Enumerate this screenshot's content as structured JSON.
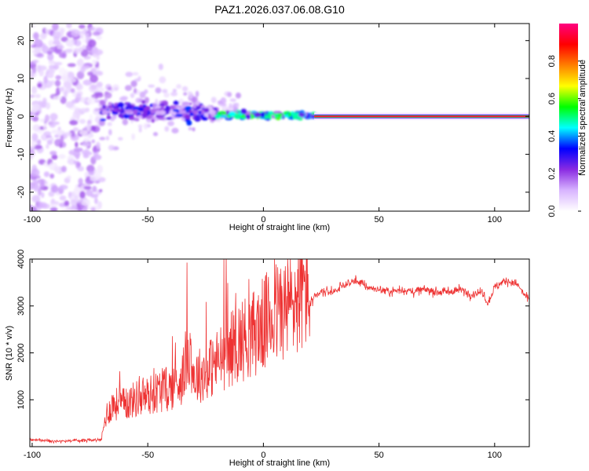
{
  "chart_data": [
    {
      "type": "heatmap",
      "title": "PAZ1.2026.037.06.08.G10",
      "xlabel": "Height of straight line (km)",
      "ylabel": "Frequency (Hz)",
      "xlim": [
        -101,
        115
      ],
      "ylim": [
        -25,
        24.5
      ],
      "xticks": [
        -100,
        -50,
        0,
        50,
        100
      ],
      "yticks": [
        -20,
        -10,
        0,
        10,
        20
      ],
      "colorbar": {
        "label": "Normalized spectral amplitude",
        "range": [
          0,
          1
        ],
        "ticks": [
          0.0,
          0.2,
          0.4,
          0.6,
          0.8
        ],
        "colors": [
          "#ffffff",
          "#d8b4ff",
          "#8a2be2",
          "#0000ff",
          "#00ffff",
          "#00ff00",
          "#ffff00",
          "#ff7f00",
          "#ff0000",
          "#ff0080"
        ]
      },
      "regions": [
        {
          "x_range": [
            -101,
            -70
          ],
          "frequency_range": [
            -25,
            24.5
          ],
          "amplitude": 0.1,
          "description": "diffuse noise"
        },
        {
          "x_range": [
            -70,
            -20
          ],
          "frequency_center": 2,
          "spread_hz": 4,
          "amplitude": 0.3
        },
        {
          "x_range": [
            -20,
            22
          ],
          "frequency_center": 0.5,
          "spread_hz": 1.5,
          "amplitude": 0.5
        },
        {
          "x_range": [
            22,
            115
          ],
          "frequency_center": 0,
          "spread_hz": 0.5,
          "amplitude": 1.0
        }
      ]
    },
    {
      "type": "line",
      "xlabel": "Height of straight line (km)",
      "ylabel": "SNR (10 * v/v)",
      "xlim": [
        -101,
        115
      ],
      "ylim": [
        0,
        4000
      ],
      "xticks": [
        -100,
        -50,
        0,
        50,
        100
      ],
      "yticks": [
        1000,
        2000,
        3000,
        4000
      ],
      "color": "#ee3333",
      "series": [
        {
          "name": "SNR",
          "x": [
            -101,
            -90,
            -80,
            -70,
            -68,
            -65,
            -60,
            -55,
            -50,
            -45,
            -40,
            -35,
            -32,
            -30,
            -25,
            -20,
            -15,
            -10,
            -5,
            0,
            5,
            10,
            15,
            20,
            25,
            30,
            35,
            38,
            40,
            45,
            50,
            55,
            60,
            65,
            70,
            75,
            80,
            85,
            90,
            95,
            97,
            100,
            105,
            110,
            112,
            115
          ],
          "y": [
            150,
            120,
            130,
            150,
            600,
            800,
            800,
            900,
            950,
            1050,
            1100,
            1300,
            1900,
            1300,
            1400,
            1600,
            1800,
            2000,
            2100,
            2300,
            2500,
            2600,
            2800,
            3050,
            3300,
            3300,
            3450,
            3500,
            3550,
            3400,
            3350,
            3300,
            3350,
            3300,
            3350,
            3300,
            3300,
            3350,
            3250,
            3300,
            3050,
            3400,
            3550,
            3450,
            3300,
            3100
          ]
        }
      ]
    }
  ]
}
